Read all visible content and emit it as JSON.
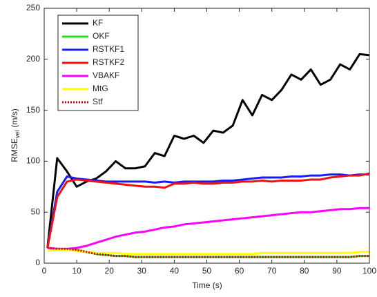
{
  "chart_data": {
    "type": "line",
    "xlabel": "Time (s)",
    "ylabel": {
      "main": "RMSE",
      "sub": "vel",
      "unit": "(m/s)"
    },
    "xlim": [
      0,
      100
    ],
    "ylim": [
      0,
      250
    ],
    "xticks": [
      0,
      10,
      20,
      30,
      40,
      50,
      60,
      70,
      80,
      90,
      100
    ],
    "yticks": [
      0,
      50,
      100,
      150,
      200,
      250
    ],
    "legend": "upper left",
    "x": [
      1,
      4,
      7,
      10,
      13,
      16,
      19,
      22,
      25,
      28,
      31,
      34,
      37,
      40,
      43,
      46,
      49,
      52,
      55,
      58,
      61,
      64,
      67,
      70,
      73,
      76,
      79,
      82,
      85,
      88,
      91,
      94,
      97,
      100
    ],
    "series": [
      {
        "name": "KF",
        "color": "#000000",
        "values": [
          15,
          103,
          90,
          75,
          80,
          83,
          90,
          100,
          93,
          93,
          95,
          108,
          105,
          125,
          122,
          125,
          118,
          130,
          128,
          135,
          160,
          145,
          165,
          160,
          170,
          185,
          180,
          190,
          175,
          180,
          195,
          190,
          205,
          204
        ]
      },
      {
        "name": "OKF",
        "color": "#22dd22",
        "values": [
          15,
          14,
          14,
          13,
          11,
          9,
          8,
          7,
          7,
          6,
          6,
          6,
          6,
          6,
          6,
          6,
          6,
          6,
          6,
          6,
          6,
          6,
          6,
          6,
          6,
          6,
          6,
          6,
          6,
          6,
          6,
          6,
          7,
          7
        ]
      },
      {
        "name": "RSTKF1",
        "color": "#1a1aff",
        "values": [
          15,
          70,
          85,
          83,
          82,
          81,
          80,
          80,
          80,
          80,
          80,
          79,
          80,
          79,
          80,
          80,
          80,
          80,
          81,
          81,
          82,
          83,
          84,
          84,
          84,
          85,
          85,
          86,
          86,
          87,
          87,
          86,
          87,
          87
        ]
      },
      {
        "name": "RSTKF2",
        "color": "#ee1111",
        "values": [
          15,
          65,
          80,
          82,
          81,
          80,
          79,
          78,
          77,
          76,
          75,
          75,
          74,
          78,
          78,
          79,
          78,
          78,
          79,
          79,
          80,
          80,
          81,
          80,
          81,
          81,
          81,
          82,
          82,
          84,
          85,
          86,
          86,
          88
        ]
      },
      {
        "name": "VBAKF",
        "color": "#ff00ff",
        "values": [
          15,
          14,
          14,
          15,
          17,
          20,
          23,
          26,
          28,
          30,
          31,
          33,
          35,
          36,
          38,
          39,
          40,
          41,
          42,
          43,
          44,
          45,
          46,
          47,
          48,
          49,
          50,
          50,
          51,
          52,
          53,
          53,
          54,
          54
        ]
      },
      {
        "name": "MtG",
        "color": "#ffff00",
        "values": [
          12,
          13,
          13,
          12,
          11,
          10,
          10,
          10,
          9,
          9,
          9,
          9,
          9,
          9,
          9,
          9,
          9,
          9,
          9,
          9,
          9,
          9,
          10,
          10,
          10,
          10,
          10,
          10,
          10,
          10,
          10,
          10,
          11,
          11
        ]
      },
      {
        "name": "Stf",
        "color": "#cc0000",
        "line_style": "dotted",
        "values": [
          15,
          14,
          14,
          13,
          11,
          9,
          8,
          7,
          7,
          6,
          6,
          6,
          6,
          6,
          6,
          6,
          6,
          6,
          6,
          6,
          6,
          6,
          6,
          6,
          6,
          6,
          6,
          6,
          6,
          6,
          6,
          6,
          7,
          7
        ]
      }
    ]
  }
}
